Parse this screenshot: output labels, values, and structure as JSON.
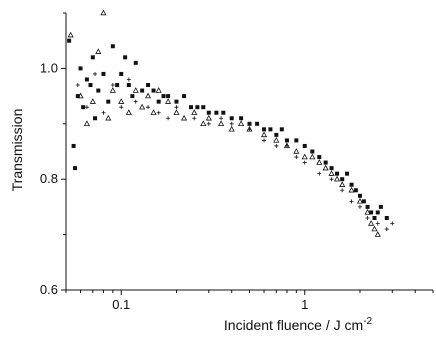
{
  "chart_data": {
    "type": "scatter",
    "title": "",
    "xlabel": "Incident fluence / J cm",
    "xlabel_superscript": "-2",
    "ylabel": "Transmission",
    "x_scale": "log",
    "xlim": [
      0.05,
      5
    ],
    "ylim": [
      0.6,
      1.1
    ],
    "x_ticks": [
      {
        "value": 0.1,
        "label": "0.1"
      },
      {
        "value": 1,
        "label": "1"
      }
    ],
    "y_ticks": [
      {
        "value": 0.6,
        "label": "0.6"
      },
      {
        "value": 0.8,
        "label": "0.8"
      },
      {
        "value": 1.0,
        "label": "1.0"
      }
    ],
    "grid": false,
    "legend": "none",
    "colors": {
      "markers": "#111111",
      "axes": "#111111",
      "background": "#ffffff"
    },
    "series": [
      {
        "marker": "filled-square",
        "points": [
          [
            0.052,
            1.05
          ],
          [
            0.055,
            0.86
          ],
          [
            0.056,
            0.82
          ],
          [
            0.058,
            0.95
          ],
          [
            0.06,
            1.0
          ],
          [
            0.062,
            0.93
          ],
          [
            0.065,
            0.98
          ],
          [
            0.068,
            0.97
          ],
          [
            0.07,
            1.02
          ],
          [
            0.072,
            0.91
          ],
          [
            0.075,
            0.96
          ],
          [
            0.08,
            0.99
          ],
          [
            0.085,
            0.94
          ],
          [
            0.09,
            1.04
          ],
          [
            0.095,
            0.97
          ],
          [
            0.1,
            0.99
          ],
          [
            0.105,
            1.02
          ],
          [
            0.11,
            0.97
          ],
          [
            0.115,
            0.95
          ],
          [
            0.12,
            1.01
          ],
          [
            0.13,
            0.96
          ],
          [
            0.14,
            0.97
          ],
          [
            0.15,
            0.96
          ],
          [
            0.16,
            0.94
          ],
          [
            0.17,
            0.95
          ],
          [
            0.18,
            0.95
          ],
          [
            0.2,
            0.94
          ],
          [
            0.22,
            0.95
          ],
          [
            0.24,
            0.93
          ],
          [
            0.26,
            0.93
          ],
          [
            0.28,
            0.93
          ],
          [
            0.3,
            0.92
          ],
          [
            0.33,
            0.92
          ],
          [
            0.36,
            0.92
          ],
          [
            0.4,
            0.91
          ],
          [
            0.45,
            0.91
          ],
          [
            0.5,
            0.9
          ],
          [
            0.55,
            0.9
          ],
          [
            0.6,
            0.89
          ],
          [
            0.65,
            0.89
          ],
          [
            0.7,
            0.88
          ],
          [
            0.75,
            0.89
          ],
          [
            0.8,
            0.87
          ],
          [
            0.9,
            0.87
          ],
          [
            1.0,
            0.86
          ],
          [
            1.1,
            0.85
          ],
          [
            1.2,
            0.84
          ],
          [
            1.3,
            0.83
          ],
          [
            1.4,
            0.82
          ],
          [
            1.5,
            0.81
          ],
          [
            1.6,
            0.8
          ],
          [
            1.7,
            0.81
          ],
          [
            1.8,
            0.79
          ],
          [
            1.9,
            0.78
          ],
          [
            2.0,
            0.77
          ],
          [
            2.1,
            0.76
          ],
          [
            2.2,
            0.75
          ],
          [
            2.3,
            0.74
          ],
          [
            2.4,
            0.73
          ],
          [
            2.5,
            0.74
          ],
          [
            2.6,
            0.75
          ],
          [
            2.8,
            0.73
          ]
        ]
      },
      {
        "marker": "open-triangle",
        "points": [
          [
            0.053,
            1.06
          ],
          [
            0.06,
            0.95
          ],
          [
            0.065,
            0.9
          ],
          [
            0.07,
            0.94
          ],
          [
            0.075,
            1.03
          ],
          [
            0.08,
            1.1
          ],
          [
            0.085,
            0.91
          ],
          [
            0.09,
            0.96
          ],
          [
            0.1,
            0.94
          ],
          [
            0.11,
            0.92
          ],
          [
            0.12,
            0.96
          ],
          [
            0.13,
            0.93
          ],
          [
            0.14,
            0.95
          ],
          [
            0.15,
            0.92
          ],
          [
            0.16,
            0.96
          ],
          [
            0.18,
            0.94
          ],
          [
            0.2,
            0.92
          ],
          [
            0.22,
            0.91
          ],
          [
            0.25,
            0.92
          ],
          [
            0.28,
            0.9
          ],
          [
            0.3,
            0.91
          ],
          [
            0.35,
            0.9
          ],
          [
            0.4,
            0.89
          ],
          [
            0.45,
            0.9
          ],
          [
            0.5,
            0.89
          ],
          [
            0.6,
            0.88
          ],
          [
            0.7,
            0.87
          ],
          [
            0.8,
            0.86
          ],
          [
            0.9,
            0.85
          ],
          [
            1.0,
            0.84
          ],
          [
            1.1,
            0.84
          ],
          [
            1.2,
            0.83
          ],
          [
            1.3,
            0.82
          ],
          [
            1.4,
            0.81
          ],
          [
            1.5,
            0.8
          ],
          [
            1.6,
            0.79
          ],
          [
            1.8,
            0.78
          ],
          [
            2.0,
            0.76
          ],
          [
            2.2,
            0.74
          ],
          [
            2.3,
            0.72
          ],
          [
            2.4,
            0.71
          ],
          [
            2.5,
            0.7
          ]
        ]
      },
      {
        "marker": "plus",
        "points": [
          [
            0.058,
            0.97
          ],
          [
            0.065,
            0.93
          ],
          [
            0.072,
            0.99
          ],
          [
            0.08,
            0.92
          ],
          [
            0.09,
            0.97
          ],
          [
            0.1,
            0.93
          ],
          [
            0.11,
            0.98
          ],
          [
            0.12,
            0.94
          ],
          [
            0.14,
            0.93
          ],
          [
            0.16,
            0.92
          ],
          [
            0.18,
            0.91
          ],
          [
            0.2,
            0.93
          ],
          [
            0.25,
            0.91
          ],
          [
            0.3,
            0.9
          ],
          [
            0.35,
            0.91
          ],
          [
            0.4,
            0.9
          ],
          [
            0.5,
            0.89
          ],
          [
            0.6,
            0.87
          ],
          [
            0.7,
            0.86
          ],
          [
            0.8,
            0.86
          ],
          [
            0.9,
            0.84
          ],
          [
            1.0,
            0.83
          ],
          [
            1.2,
            0.81
          ],
          [
            1.4,
            0.8
          ],
          [
            1.6,
            0.78
          ],
          [
            1.8,
            0.76
          ],
          [
            2.0,
            0.75
          ],
          [
            2.2,
            0.73
          ],
          [
            2.5,
            0.72
          ],
          [
            2.8,
            0.71
          ],
          [
            3.0,
            0.72
          ]
        ]
      }
    ]
  }
}
